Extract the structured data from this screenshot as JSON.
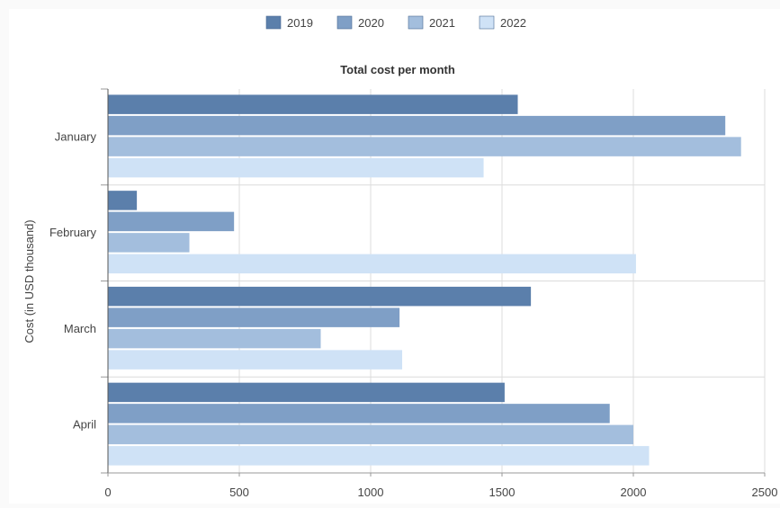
{
  "chart_data": {
    "type": "bar",
    "orientation": "horizontal",
    "title": "Total cost per month",
    "xlabel": "",
    "ylabel": "Cost (in USD thousand)",
    "categories": [
      "January",
      "February",
      "March",
      "April"
    ],
    "series": [
      {
        "name": "2019",
        "color": "#5b7fab",
        "values": [
          1560,
          110,
          1610,
          1510
        ]
      },
      {
        "name": "2020",
        "color": "#7f9fc6",
        "values": [
          2350,
          480,
          1110,
          1910
        ]
      },
      {
        "name": "2021",
        "color": "#a3bedd",
        "values": [
          2410,
          310,
          810,
          2000
        ]
      },
      {
        "name": "2022",
        "color": "#cfe2f6",
        "values": [
          1430,
          2010,
          1120,
          2060
        ]
      }
    ],
    "xlim": [
      0,
      2500
    ],
    "xticks": [
      "0",
      "500",
      "1000",
      "1500",
      "2000",
      "2500"
    ],
    "grid": true,
    "legend_position": "top-center"
  }
}
